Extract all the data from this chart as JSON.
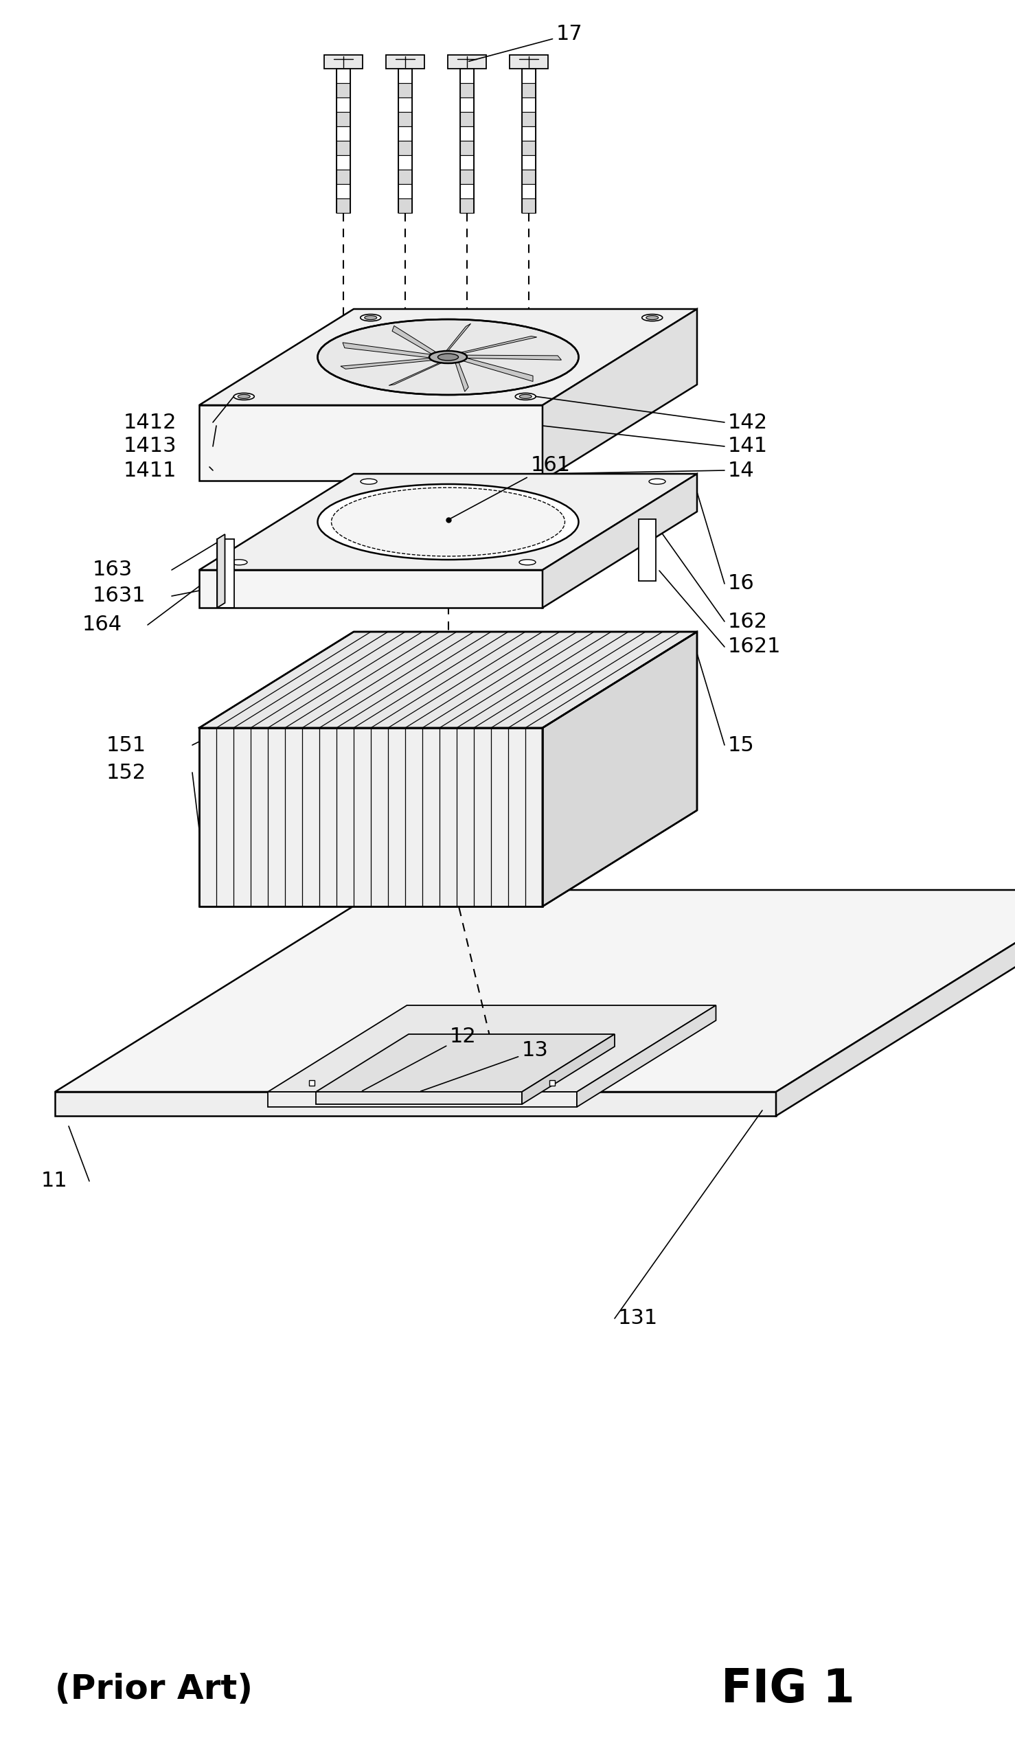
{
  "bg_color": "#ffffff",
  "fig_width": 14.78,
  "fig_height": 25.63,
  "title": "FIG 1",
  "subtitle": "(Prior Art)"
}
